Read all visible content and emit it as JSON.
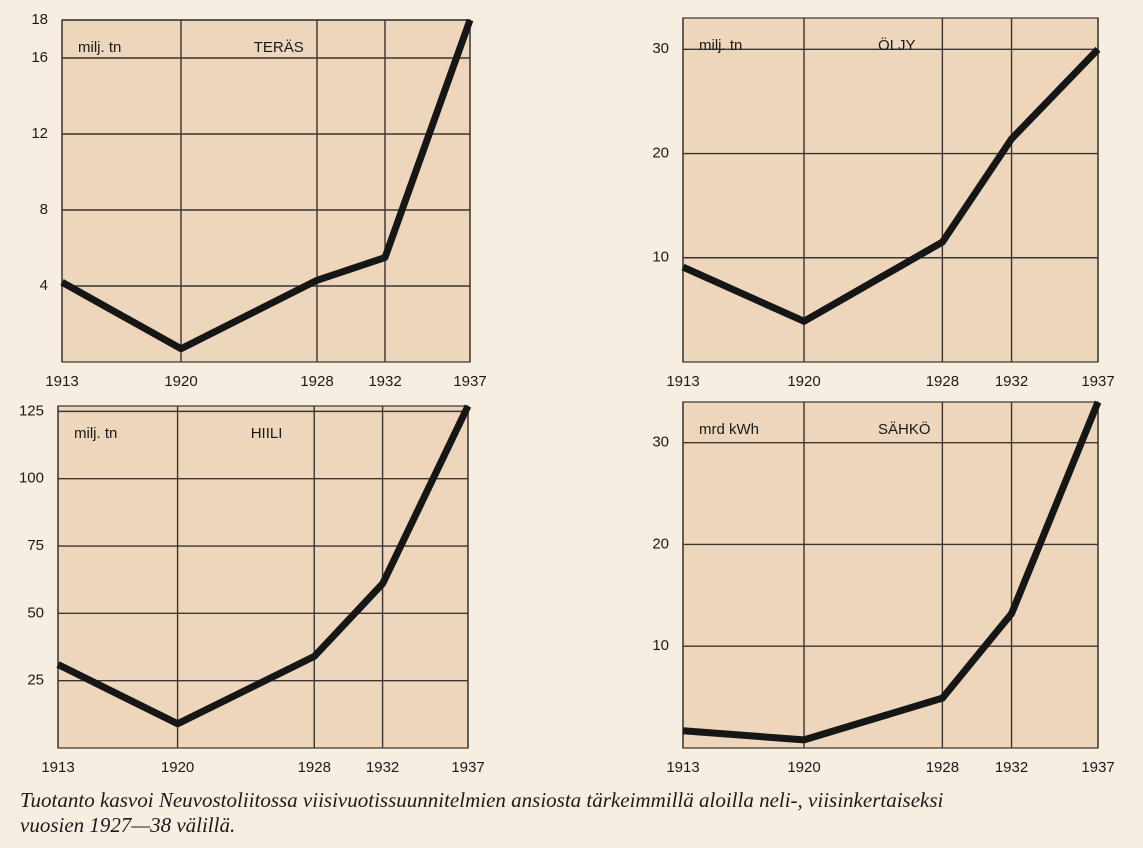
{
  "chart_data": [
    {
      "type": "line",
      "title": "TERÄS",
      "unit_label": "milj. tn",
      "x": [
        1913,
        1920,
        1928,
        1932,
        1937
      ],
      "series": [
        {
          "color": "#161616",
          "values": [
            4.2,
            0.7,
            4.3,
            5.5,
            18
          ]
        }
      ],
      "xlim": [
        1913,
        1937
      ],
      "xticks": [
        1913,
        1920,
        1928,
        1932,
        1937
      ],
      "ylim": [
        0,
        18
      ],
      "yticks": [
        4,
        8,
        12,
        16,
        18
      ],
      "grid": true
    },
    {
      "type": "line",
      "title": "ÖLJY",
      "unit_label": "milj. tn",
      "x": [
        1913,
        1920,
        1928,
        1932,
        1937
      ],
      "series": [
        {
          "color": "#161616",
          "values": [
            9.1,
            3.9,
            11.5,
            21.4,
            30
          ]
        }
      ],
      "xlim": [
        1913,
        1937
      ],
      "xticks": [
        1913,
        1920,
        1928,
        1932,
        1937
      ],
      "ylim": [
        0,
        33
      ],
      "yticks": [
        10,
        20,
        30
      ],
      "grid": true
    },
    {
      "type": "line",
      "title": "HIILI",
      "unit_label": "milj. tn",
      "x": [
        1913,
        1920,
        1928,
        1932,
        1937
      ],
      "series": [
        {
          "color": "#161616",
          "values": [
            31,
            9,
            34,
            61,
            127
          ]
        }
      ],
      "xlim": [
        1913,
        1937
      ],
      "xticks": [
        1913,
        1920,
        1928,
        1932,
        1937
      ],
      "ylim": [
        0,
        127
      ],
      "yticks": [
        25,
        50,
        75,
        100,
        125
      ],
      "grid": true
    },
    {
      "type": "line",
      "title": "SÄHKÖ",
      "unit_label": "mrd kWh",
      "x": [
        1913,
        1920,
        1928,
        1932,
        1937
      ],
      "series": [
        {
          "color": "#161616",
          "values": [
            1.7,
            0.8,
            4.9,
            13.2,
            34
          ]
        }
      ],
      "xlim": [
        1913,
        1937
      ],
      "xticks": [
        1913,
        1920,
        1928,
        1932,
        1937
      ],
      "ylim": [
        0,
        34
      ],
      "yticks": [
        10,
        20,
        30
      ],
      "grid": true
    }
  ],
  "caption": [
    "Tuotanto kasvoi Neuvostoliitossa viisivuotissuunnitelmien ansiosta tärkeimmillä aloilla neli-, viisinkertaiseksi",
    "vuosien 1927—38 välillä."
  ]
}
